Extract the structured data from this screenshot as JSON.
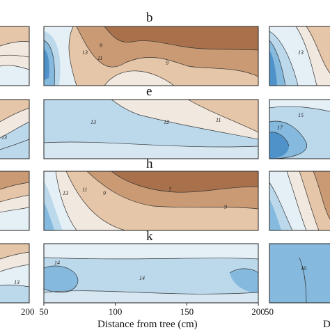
{
  "chart_data": {
    "type": "contour",
    "xlabel": "Distance from tree (cm)",
    "x_ticks_center": [
      50,
      100,
      150,
      200
    ],
    "x_ticks_left_panel_right_edge": "200",
    "x_ticks_right_panel_left_edge": "50",
    "xlim": [
      50,
      200
    ],
    "panels": [
      {
        "letter": "b",
        "style": "brown-rise",
        "labels": [
          "13",
          "11",
          "9",
          "9"
        ]
      },
      {
        "letter": "e",
        "style": "blue-flat",
        "labels": [
          "13",
          "12",
          "11"
        ]
      },
      {
        "letter": "h",
        "style": "brown-deep",
        "labels": [
          "13",
          "11",
          "9",
          "9",
          "7"
        ]
      },
      {
        "letter": "k",
        "style": "blue-calm",
        "labels": [
          "14",
          "14"
        ]
      }
    ],
    "left_column_labels": [
      "13",
      "13"
    ],
    "right_column_labels": [
      "13",
      "17",
      "15",
      "16"
    ],
    "cut_off_right_text": "D",
    "colors": {
      "deep_brown": "#a9714b",
      "mid_brown": "#c99a74",
      "light_brown": "#e6c6a8",
      "pale": "#f1e8df",
      "pale_blue": "#e4eff6",
      "light_blue": "#bcd9ec",
      "mid_blue": "#85b9dd",
      "deep_blue": "#4f92c9"
    }
  }
}
